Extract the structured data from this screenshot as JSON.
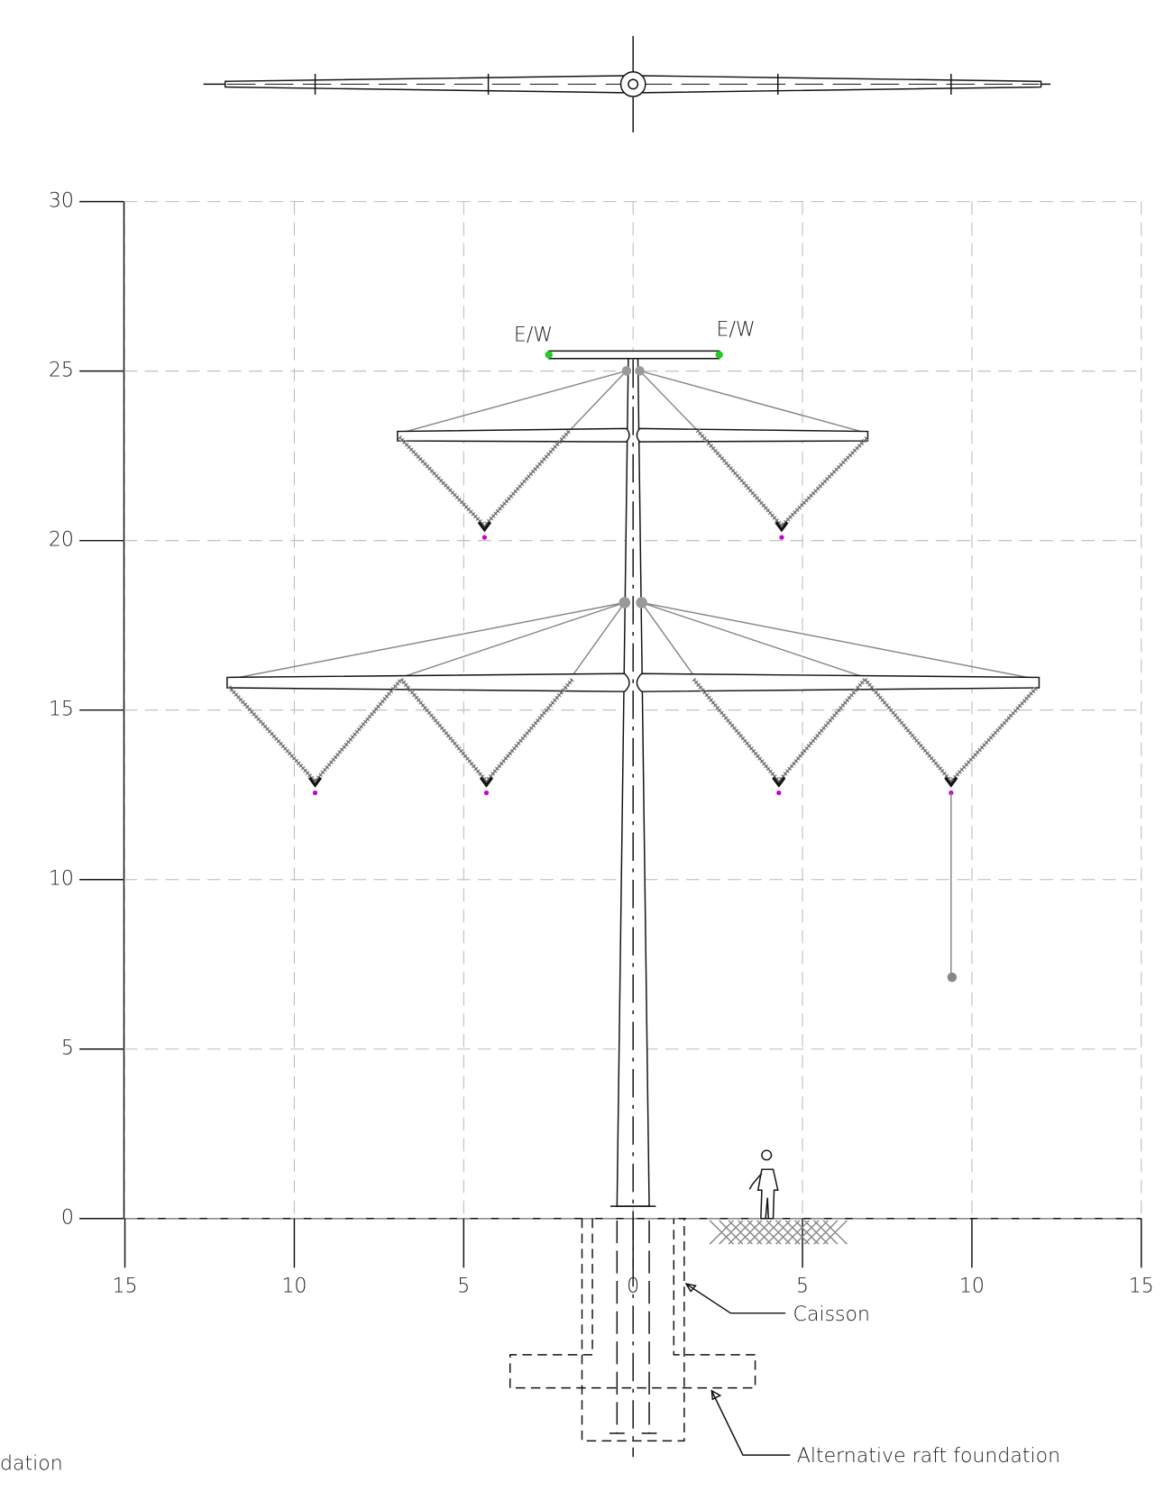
{
  "axes": {
    "yticks": [
      30,
      25,
      20,
      15,
      10,
      5,
      0
    ],
    "xticks": [
      {
        "value": -15,
        "label": "15"
      },
      {
        "value": -10,
        "label": "10"
      },
      {
        "value": -5,
        "label": "5"
      },
      0,
      5,
      10,
      15
    ]
  },
  "labels": [
    "E/W",
    "E/W",
    "Caisson",
    "Alternative raft foundation",
    "dation"
  ]
}
